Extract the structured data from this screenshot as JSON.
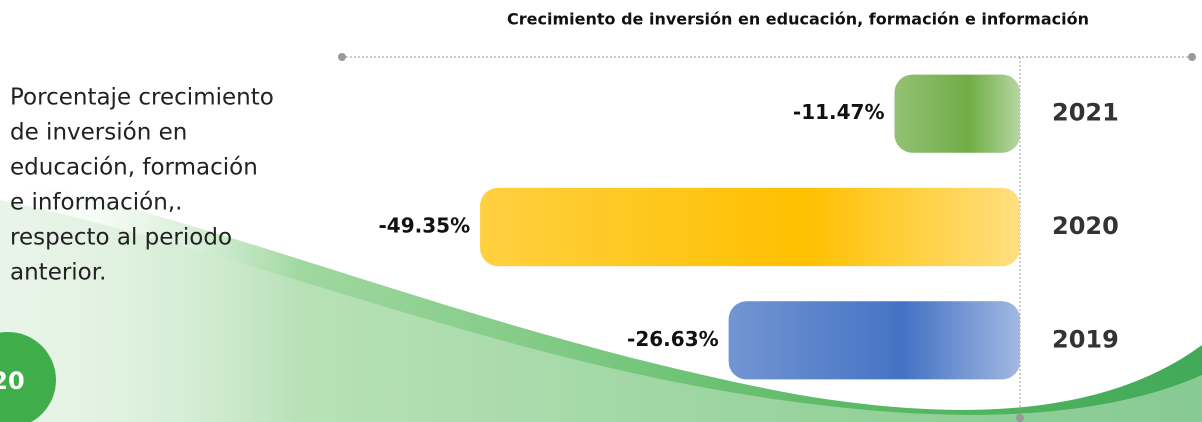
{
  "chart_data": {
    "type": "hbar",
    "title": "Crecimiento de inversión en educación, formación e información",
    "categories": [
      "2021",
      "2020",
      "2019"
    ],
    "values": [
      -11.47,
      -49.35,
      -26.63
    ],
    "value_labels": [
      "-11.47%",
      "-49.35%",
      "-26.63%"
    ],
    "colors": [
      "#70ad47",
      "#ffc000",
      "#4472c4"
    ],
    "xlim": [
      -50,
      0
    ]
  },
  "description": [
    "Porcentaje crecimiento",
    "de inversión en",
    "educación, formación",
    "e información,.",
    "respecto al periodo",
    "anterior."
  ],
  "badge": "20"
}
